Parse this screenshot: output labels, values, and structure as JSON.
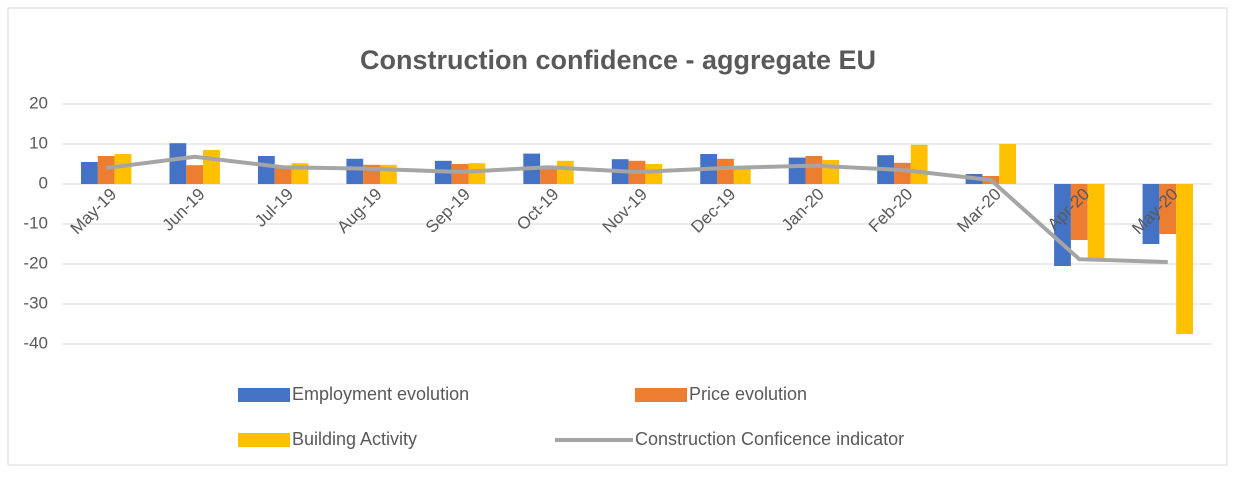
{
  "chart_data": {
    "type": "bar_line",
    "title": "Construction confidence - aggregate EU",
    "categories": [
      "May-19",
      "Jun-19",
      "Jul-19",
      "Aug-19",
      "Sep-19",
      "Oct-19",
      "Nov-19",
      "Dec-19",
      "Jan-20",
      "Feb-20",
      "Mar-20",
      "Apr-20",
      "May-20"
    ],
    "series": [
      {
        "name": "Employment evolution",
        "color": "#4472c4",
        "kind": "bar",
        "values": [
          5.5,
          10.2,
          7,
          6.3,
          5.8,
          7.6,
          6.2,
          7.5,
          6.6,
          7.2,
          2.5,
          -20.5,
          -15
        ]
      },
      {
        "name": "Price evolution",
        "color": "#ed7d31",
        "kind": "bar",
        "values": [
          7,
          4.7,
          4.5,
          4.8,
          5,
          4.5,
          5.8,
          6.3,
          7,
          5.3,
          2,
          -14,
          -12.5
        ]
      },
      {
        "name": "Building Activity",
        "color": "#ffc000",
        "kind": "bar",
        "values": [
          7.5,
          8.5,
          5.2,
          4.8,
          5.2,
          5.8,
          5,
          4.5,
          6,
          9.8,
          10,
          -18.5,
          -37.5
        ]
      },
      {
        "name": "Construction Conficence indicator",
        "color": "#a5a5a5",
        "kind": "line",
        "values": [
          4,
          6.8,
          4.2,
          3.8,
          3,
          4.2,
          3,
          4,
          4.6,
          3.5,
          1,
          -18.8,
          -19.5
        ]
      }
    ],
    "ylim": [
      -40,
      20
    ],
    "yticks": [
      -40,
      -30,
      -20,
      -10,
      0,
      10,
      20
    ],
    "grid": true
  }
}
